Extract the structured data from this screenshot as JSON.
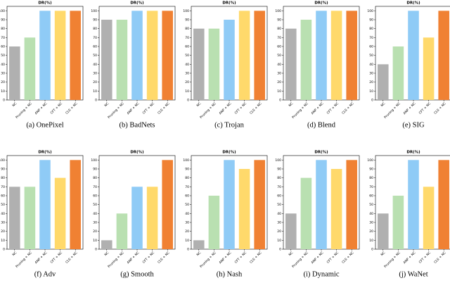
{
  "chart_data": [
    {
      "type": "bar",
      "title": "DR(%)",
      "caption": "(a) OnePixel",
      "categories": [
        "NC",
        "Pruning + NC",
        "ANP + NC",
        "CFT + NC",
        "CLS + NC"
      ],
      "values": [
        60,
        70,
        100,
        100,
        100
      ],
      "colors": [
        "#b0b0b0",
        "#b9e0b1",
        "#8fcbf6",
        "#ffd96b",
        "#f08133"
      ],
      "ylim": [
        0,
        105
      ],
      "yticks": [
        0,
        10,
        20,
        30,
        40,
        50,
        60,
        70,
        80,
        90,
        100
      ]
    },
    {
      "type": "bar",
      "title": "DR(%)",
      "caption": "(b) BadNets",
      "categories": [
        "NC",
        "Pruning + NC",
        "ANP + NC",
        "CFT + NC",
        "CLS + NC"
      ],
      "values": [
        90,
        90,
        100,
        100,
        100
      ],
      "colors": [
        "#b0b0b0",
        "#b9e0b1",
        "#8fcbf6",
        "#ffd96b",
        "#f08133"
      ],
      "ylim": [
        0,
        105
      ],
      "yticks": [
        0,
        10,
        20,
        30,
        40,
        50,
        60,
        70,
        80,
        90,
        100
      ]
    },
    {
      "type": "bar",
      "title": "DR(%)",
      "caption": "(c) Trojan",
      "categories": [
        "NC",
        "Pruning + NC",
        "ANP + NC",
        "CFT + NC",
        "CLS + NC"
      ],
      "values": [
        80,
        80,
        90,
        100,
        100
      ],
      "colors": [
        "#b0b0b0",
        "#b9e0b1",
        "#8fcbf6",
        "#ffd96b",
        "#f08133"
      ],
      "ylim": [
        0,
        105
      ],
      "yticks": [
        0,
        10,
        20,
        30,
        40,
        50,
        60,
        70,
        80,
        90,
        100
      ]
    },
    {
      "type": "bar",
      "title": "DR(%)",
      "caption": "(d) Blend",
      "categories": [
        "NC",
        "Pruning + NC",
        "ANP + NC",
        "CFT + NC",
        "CLS + NC"
      ],
      "values": [
        80,
        90,
        100,
        100,
        100
      ],
      "colors": [
        "#b0b0b0",
        "#b9e0b1",
        "#8fcbf6",
        "#ffd96b",
        "#f08133"
      ],
      "ylim": [
        0,
        105
      ],
      "yticks": [
        0,
        10,
        20,
        30,
        40,
        50,
        60,
        70,
        80,
        90,
        100
      ]
    },
    {
      "type": "bar",
      "title": "DR(%)",
      "caption": "(e) SIG",
      "categories": [
        "NC",
        "Pruning + NC",
        "ANP + NC",
        "CFT + NC",
        "CLS + NC"
      ],
      "values": [
        40,
        60,
        100,
        70,
        100
      ],
      "colors": [
        "#b0b0b0",
        "#b9e0b1",
        "#8fcbf6",
        "#ffd96b",
        "#f08133"
      ],
      "ylim": [
        0,
        105
      ],
      "yticks": [
        0,
        10,
        20,
        30,
        40,
        50,
        60,
        70,
        80,
        90,
        100
      ]
    },
    {
      "type": "bar",
      "title": "DR(%)",
      "caption": "(f) Adv",
      "categories": [
        "NC",
        "Pruning + NC",
        "ANP + NC",
        "CFT + NC",
        "CLS + NC"
      ],
      "values": [
        70,
        70,
        100,
        80,
        100
      ],
      "colors": [
        "#b0b0b0",
        "#b9e0b1",
        "#8fcbf6",
        "#ffd96b",
        "#f08133"
      ],
      "ylim": [
        0,
        105
      ],
      "yticks": [
        0,
        10,
        20,
        30,
        40,
        50,
        60,
        70,
        80,
        90,
        100
      ]
    },
    {
      "type": "bar",
      "title": "DR(%)",
      "caption": "(g) Smooth",
      "categories": [
        "NC",
        "Pruning + NC",
        "ANP + NC",
        "CFT + NC",
        "CLS + NC"
      ],
      "values": [
        10,
        40,
        70,
        70,
        100
      ],
      "colors": [
        "#b0b0b0",
        "#b9e0b1",
        "#8fcbf6",
        "#ffd96b",
        "#f08133"
      ],
      "ylim": [
        0,
        105
      ],
      "yticks": [
        0,
        10,
        20,
        30,
        40,
        50,
        60,
        70,
        80,
        90,
        100
      ]
    },
    {
      "type": "bar",
      "title": "DR(%)",
      "caption": "(h) Nash",
      "categories": [
        "NC",
        "Pruning + NC",
        "ANP + NC",
        "CFT + NC",
        "CLS + NC"
      ],
      "values": [
        10,
        60,
        100,
        90,
        100
      ],
      "colors": [
        "#b0b0b0",
        "#b9e0b1",
        "#8fcbf6",
        "#ffd96b",
        "#f08133"
      ],
      "ylim": [
        0,
        105
      ],
      "yticks": [
        0,
        10,
        20,
        30,
        40,
        50,
        60,
        70,
        80,
        90,
        100
      ]
    },
    {
      "type": "bar",
      "title": "DR(%)",
      "caption": "(i) Dynamic",
      "categories": [
        "NC",
        "Pruning + NC",
        "ANP + NC",
        "CFT + NC",
        "CLS + NC"
      ],
      "values": [
        40,
        80,
        100,
        90,
        100
      ],
      "colors": [
        "#b0b0b0",
        "#b9e0b1",
        "#8fcbf6",
        "#ffd96b",
        "#f08133"
      ],
      "ylim": [
        0,
        105
      ],
      "yticks": [
        0,
        10,
        20,
        30,
        40,
        50,
        60,
        70,
        80,
        90,
        100
      ]
    },
    {
      "type": "bar",
      "title": "DR(%)",
      "caption": "(j) WaNet",
      "categories": [
        "NC",
        "Pruning + NC",
        "ANP + NC",
        "CFT + NC",
        "CLS + NC"
      ],
      "values": [
        40,
        60,
        100,
        70,
        100
      ],
      "colors": [
        "#b0b0b0",
        "#b9e0b1",
        "#8fcbf6",
        "#ffd96b",
        "#f08133"
      ],
      "ylim": [
        0,
        105
      ],
      "yticks": [
        0,
        10,
        20,
        30,
        40,
        50,
        60,
        70,
        80,
        90,
        100
      ]
    }
  ]
}
